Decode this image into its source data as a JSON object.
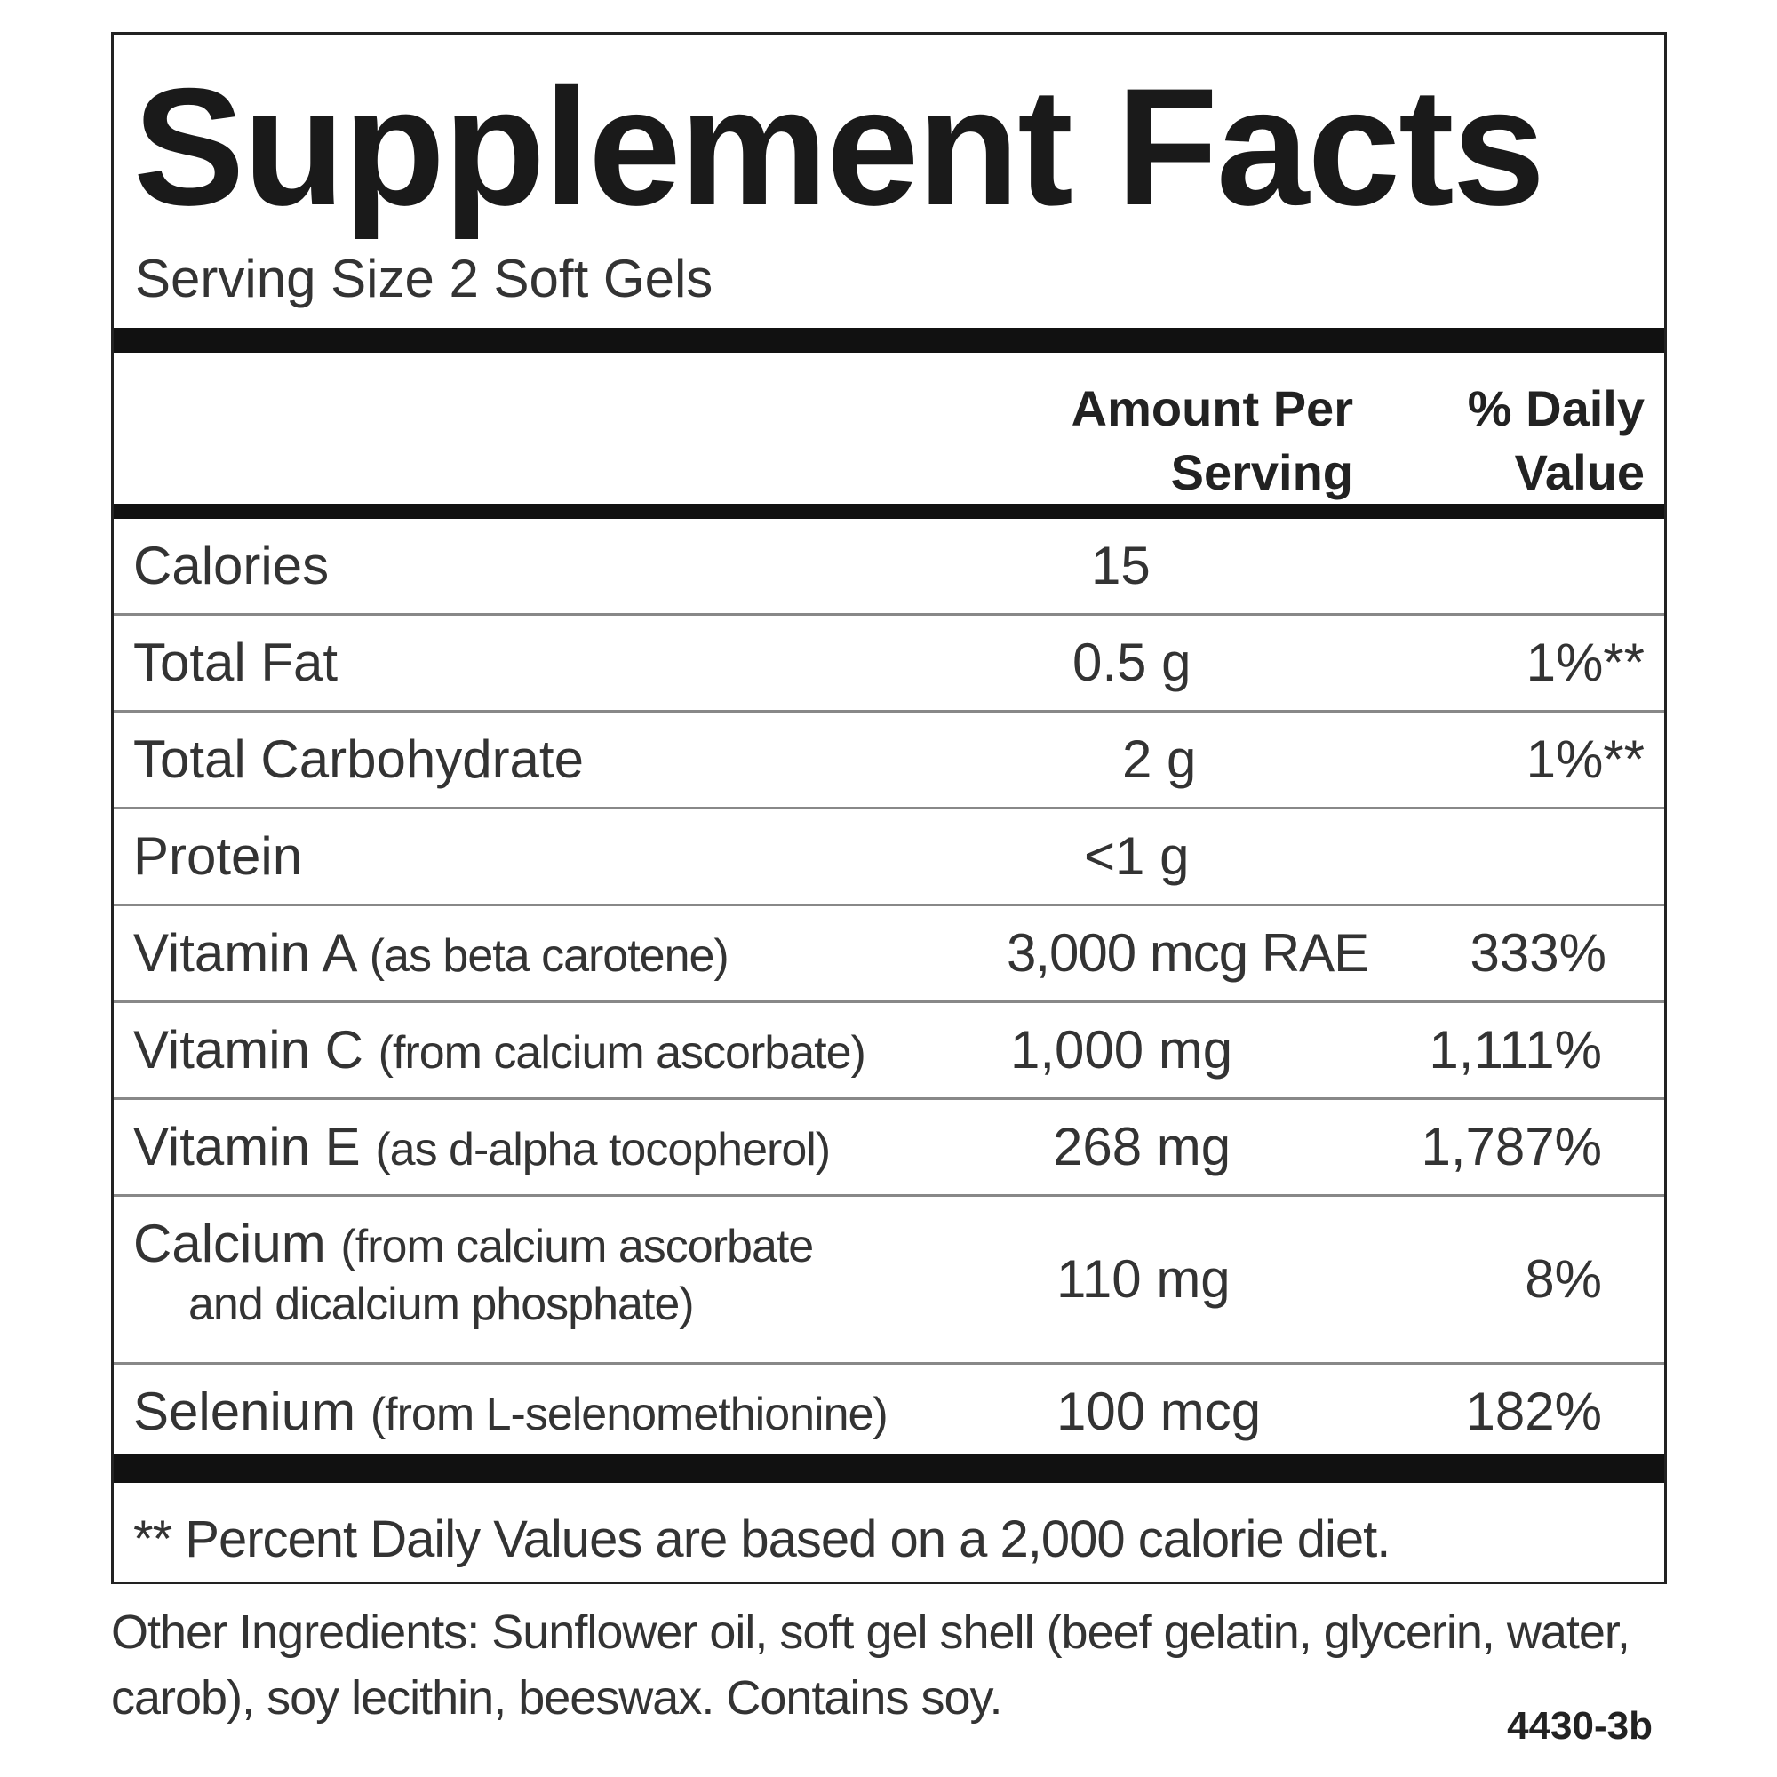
{
  "title": "Supplement Facts",
  "serving_size": "Serving Size 2 Soft Gels",
  "header": {
    "amount": [
      "Amount Per",
      "Serving"
    ],
    "dv": [
      "% Daily",
      "Value"
    ]
  },
  "rows": [
    {
      "name": "Calories",
      "sub": "",
      "amount": "15",
      "dv": ""
    },
    {
      "name": "Total Fat",
      "sub": "",
      "amount": "0.5 g",
      "dv": "1%**"
    },
    {
      "name": "Total Carbohydrate",
      "sub": "",
      "amount": "2 g",
      "dv": "1%**"
    },
    {
      "name": "Protein",
      "sub": "",
      "amount": "<1 g",
      "dv": ""
    },
    {
      "name": "Vitamin A",
      "sub": "(as beta carotene)",
      "amount": "3,000 mcg RAE",
      "dv": "333%"
    },
    {
      "name": "Vitamin C",
      "sub": "(from calcium ascorbate)",
      "amount": "1,000 mg",
      "dv": "1,111%"
    },
    {
      "name": "Vitamin E",
      "sub": "(as d-alpha tocopherol)",
      "amount": "268 mg",
      "dv": "1,787%"
    },
    {
      "name": "Calcium",
      "sub": "(from calcium ascorbate",
      "sub2": "and dicalcium phosphate)",
      "amount": "110 mg",
      "dv": "8%"
    },
    {
      "name": "Selenium",
      "sub": "(from L-selenomethionine)",
      "amount": "100 mcg",
      "dv": "182%"
    }
  ],
  "footnote": "** Percent Daily Values are based on a 2,000 calorie diet.",
  "other_ingredients": "Other Ingredients: Sunflower oil, soft gel shell (beef gelatin, glycerin, water, carob), soy lecithin, beeswax. Contains soy.",
  "code": "4430-3b"
}
